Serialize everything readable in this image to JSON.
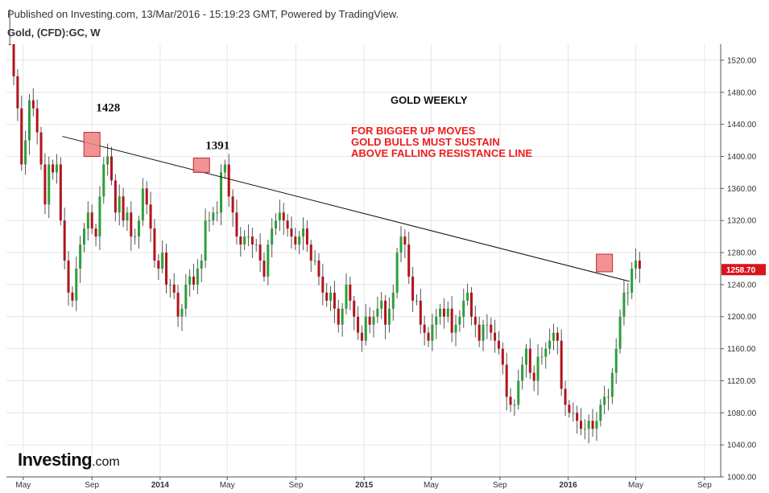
{
  "header": {
    "published": "Published on Investing.com, 13/Mar/2016 - 15:19:23 GMT, Powered by TradingView.",
    "symbol": "Gold, (CFD):GC, W"
  },
  "logo": {
    "main": "Investing",
    "domain": ".com"
  },
  "colors": {
    "up": "#2e9e3a",
    "down": "#b0141c",
    "wick": "#555555",
    "grid": "#e6e6e6",
    "resistance": "#111111",
    "highlight_fill": "#f08080",
    "highlight_stroke": "#c0282f",
    "last_price_bg": "#d9141c",
    "note_text": "#ee1c1c"
  },
  "chart_data": {
    "type": "candlestick",
    "title": "GOLD WEEKLY",
    "symbol": "Gold, (CFD):GC, W",
    "timeframe": "weekly",
    "y_axis": {
      "position": "right",
      "range": [
        1000,
        1540
      ],
      "ticks": [
        1000,
        1040,
        1080,
        1120,
        1160,
        1200,
        1240,
        1280,
        1320,
        1360,
        1400,
        1440,
        1480,
        1520
      ],
      "tick_labels": [
        "1000.00",
        "1040.00",
        "1080.00",
        "1120.00",
        "1160.00",
        "1200.00",
        "1240.00",
        "1280.00",
        "1320.00",
        "1360.00",
        "1400.00",
        "1440.00",
        "1480.00",
        "1520.00"
      ]
    },
    "x_axis": {
      "range": [
        "2013-04-01",
        "2016-09-30"
      ],
      "ticks": [
        {
          "date": "2013-05-01",
          "label": "May",
          "bold": false
        },
        {
          "date": "2013-09-01",
          "label": "Sep",
          "bold": false
        },
        {
          "date": "2014-01-01",
          "label": "2014",
          "bold": true
        },
        {
          "date": "2014-05-01",
          "label": "May",
          "bold": false
        },
        {
          "date": "2014-09-01",
          "label": "Sep",
          "bold": false
        },
        {
          "date": "2015-01-01",
          "label": "2015",
          "bold": true
        },
        {
          "date": "2015-05-01",
          "label": "May",
          "bold": false
        },
        {
          "date": "2015-09-01",
          "label": "Sep",
          "bold": false
        },
        {
          "date": "2016-01-01",
          "label": "2016",
          "bold": true
        },
        {
          "date": "2016-05-01",
          "label": "May",
          "bold": false
        },
        {
          "date": "2016-09-01",
          "label": "Sep",
          "bold": false
        }
      ]
    },
    "last_price": {
      "value": 1258.7,
      "label": "1258.70"
    },
    "resistance_line": {
      "from": {
        "date": "2013-07-10",
        "price": 1425
      },
      "to": {
        "date": "2016-04-20",
        "price": 1244
      }
    },
    "annotations": [
      {
        "text": "1428",
        "date": "2013-09-01",
        "price": 1428
      },
      {
        "text": "1391",
        "date": "2014-03-16",
        "price": 1391
      }
    ],
    "highlight_boxes": [
      {
        "date": "2013-09-01",
        "price_low": 1400,
        "price_high": 1430
      },
      {
        "date": "2014-03-16",
        "price_low": 1380,
        "price_high": 1398
      },
      {
        "date": "2016-03-06",
        "price_low": 1256,
        "price_high": 1278
      }
    ],
    "note_lines": [
      "FOR BIGGER UP MOVES",
      "GOLD BULLS MUST SUSTAIN",
      "ABOVE FALLING RESISTANCE LINE"
    ],
    "series": {
      "start_date": "2013-04-07",
      "closes": [
        1590,
        1500,
        1460,
        1390,
        1420,
        1470,
        1460,
        1430,
        1390,
        1340,
        1390,
        1380,
        1390,
        1320,
        1270,
        1230,
        1220,
        1260,
        1290,
        1310,
        1330,
        1310,
        1300,
        1350,
        1390,
        1400,
        1370,
        1330,
        1350,
        1320,
        1330,
        1300,
        1300,
        1320,
        1360,
        1340,
        1310,
        1270,
        1260,
        1280,
        1240,
        1240,
        1230,
        1200,
        1210,
        1240,
        1250,
        1240,
        1260,
        1270,
        1320,
        1320,
        1330,
        1330,
        1380,
        1390,
        1350,
        1330,
        1300,
        1290,
        1300,
        1300,
        1290,
        1290,
        1270,
        1250,
        1290,
        1310,
        1320,
        1330,
        1320,
        1310,
        1300,
        1290,
        1300,
        1310,
        1290,
        1270,
        1270,
        1250,
        1230,
        1220,
        1230,
        1210,
        1190,
        1210,
        1240,
        1220,
        1200,
        1180,
        1170,
        1200,
        1190,
        1200,
        1210,
        1220,
        1190,
        1210,
        1230,
        1280,
        1300,
        1290,
        1250,
        1220,
        1220,
        1190,
        1180,
        1170,
        1190,
        1200,
        1210,
        1200,
        1210,
        1180,
        1190,
        1200,
        1220,
        1230,
        1200,
        1190,
        1170,
        1190,
        1190,
        1180,
        1170,
        1160,
        1140,
        1100,
        1090,
        1090,
        1120,
        1140,
        1160,
        1130,
        1120,
        1150,
        1150,
        1160,
        1170,
        1180,
        1170,
        1110,
        1090,
        1080,
        1080,
        1070,
        1060,
        1060,
        1070,
        1060,
        1070,
        1090,
        1100,
        1100,
        1130,
        1160,
        1200,
        1230,
        1230,
        1260,
        1270,
        1260
      ]
    }
  }
}
